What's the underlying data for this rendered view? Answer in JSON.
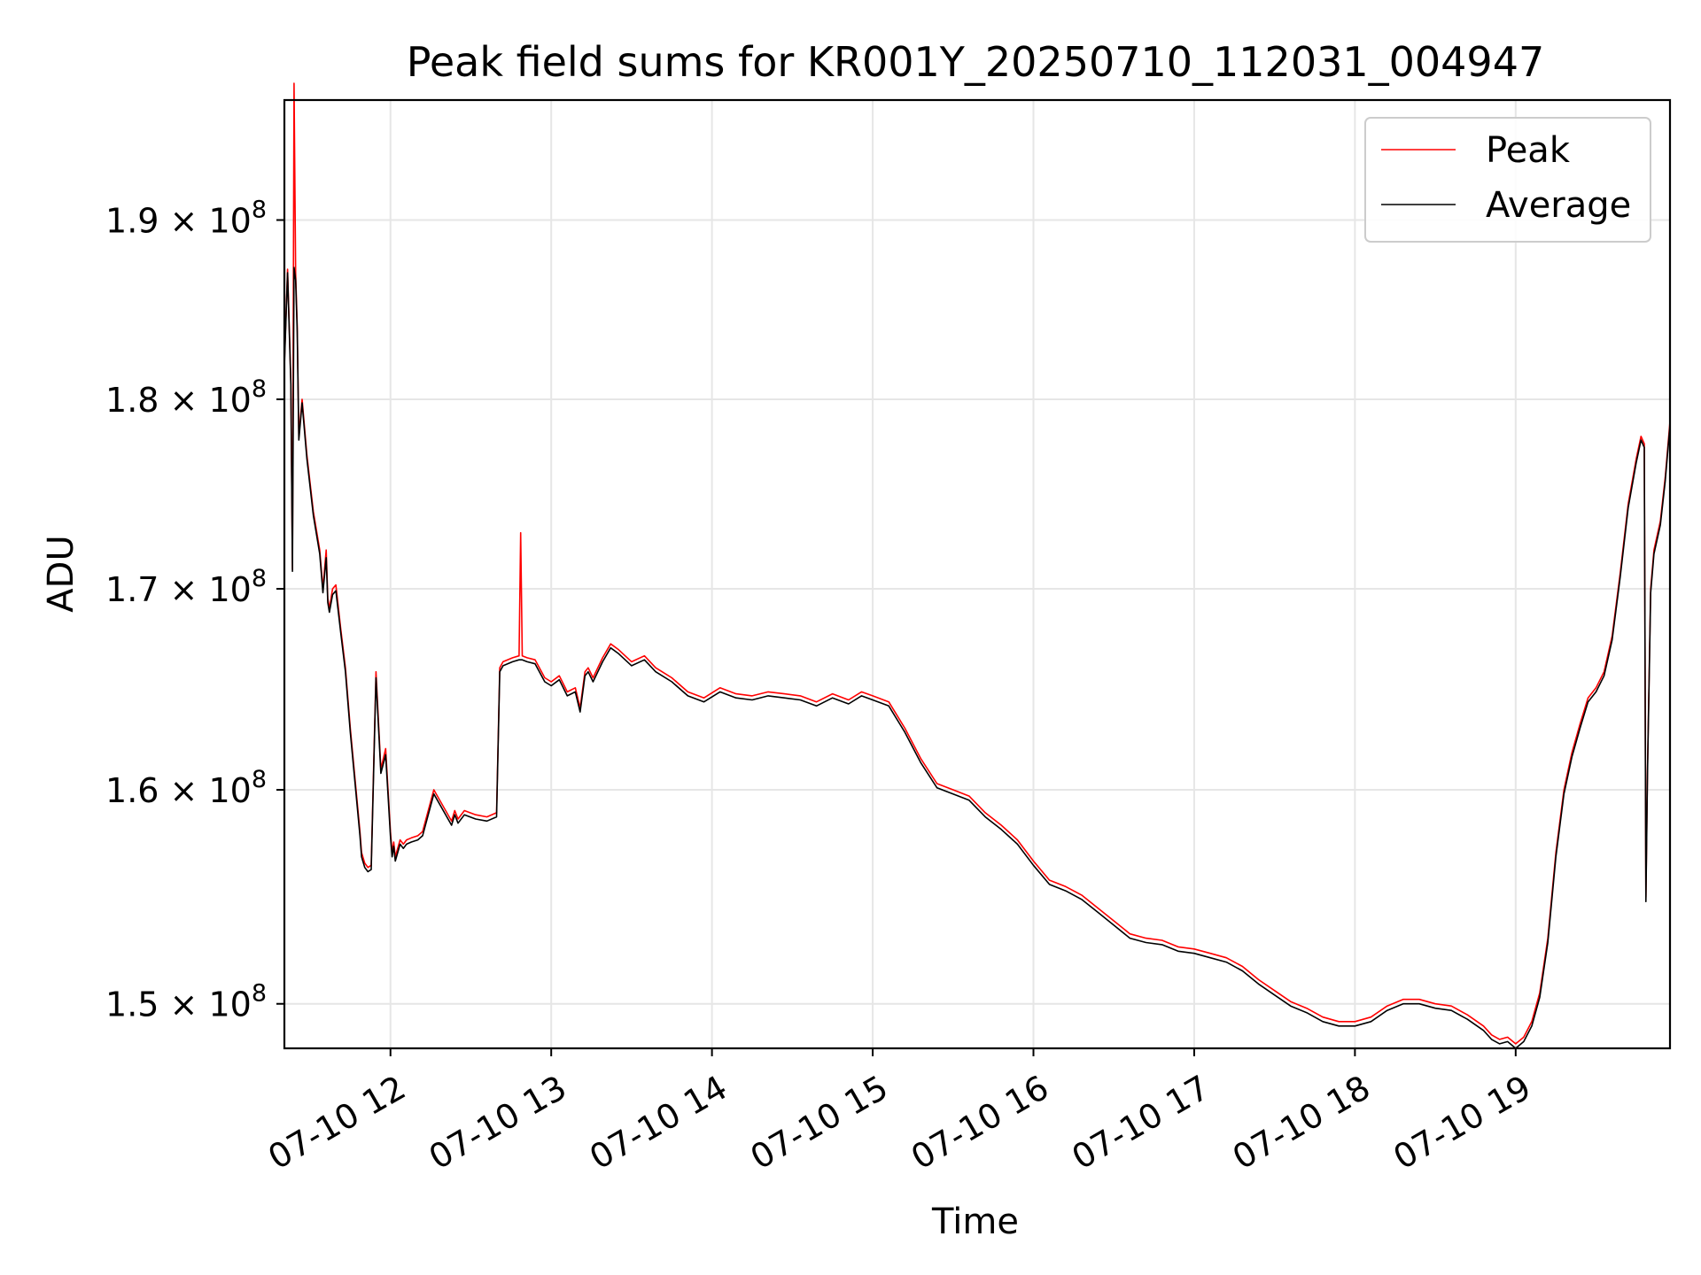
{
  "chart_data": {
    "type": "line",
    "title": "Peak field sums for KR001Y_20250710_112031_004947",
    "xlabel": "Time",
    "ylabel": "ADU",
    "x_unit": "hours (2025-07-10, local)",
    "xlim": [
      11.34,
      19.96
    ],
    "ylim": [
      148000000.0,
      197000000.0
    ],
    "yscale": "log",
    "grid": true,
    "legend_position": "upper right",
    "x_ticks": [
      {
        "value": 12,
        "label": "07-10 12"
      },
      {
        "value": 13,
        "label": "07-10 13"
      },
      {
        "value": 14,
        "label": "07-10 14"
      },
      {
        "value": 15,
        "label": "07-10 15"
      },
      {
        "value": 16,
        "label": "07-10 16"
      },
      {
        "value": 17,
        "label": "07-10 17"
      },
      {
        "value": 18,
        "label": "07-10 18"
      },
      {
        "value": 19,
        "label": "07-10 19"
      }
    ],
    "y_ticks": [
      {
        "value": 150000000.0,
        "mantissa": "1.5",
        "base": "10",
        "exp": "8"
      },
      {
        "value": 160000000.0,
        "mantissa": "1.6",
        "base": "10",
        "exp": "8"
      },
      {
        "value": 170000000.0,
        "mantissa": "1.7",
        "base": "10",
        "exp": "8"
      },
      {
        "value": 180000000.0,
        "mantissa": "1.8",
        "base": "10",
        "exp": "8"
      },
      {
        "value": 190000000.0,
        "mantissa": "1.9",
        "base": "10",
        "exp": "8"
      }
    ],
    "series": [
      {
        "name": "Peak",
        "color": "#ff0000",
        "x": [
          11.34,
          11.36,
          11.38,
          11.39,
          11.4,
          11.41,
          11.42,
          11.43,
          11.45,
          11.48,
          11.52,
          11.56,
          11.58,
          11.6,
          11.61,
          11.62,
          11.64,
          11.66,
          11.69,
          11.72,
          11.75,
          11.78,
          11.81,
          11.82,
          11.84,
          11.86,
          11.88,
          11.91,
          11.94,
          11.97,
          12.0,
          12.01,
          12.02,
          12.03,
          12.06,
          12.08,
          12.1,
          12.13,
          12.17,
          12.2,
          12.27,
          12.38,
          12.4,
          12.42,
          12.46,
          12.53,
          12.6,
          12.66,
          12.68,
          12.7,
          12.76,
          12.8,
          12.81,
          12.82,
          12.85,
          12.9,
          12.96,
          13.0,
          13.05,
          13.1,
          13.15,
          13.18,
          13.21,
          13.23,
          13.26,
          13.32,
          13.37,
          13.42,
          13.5,
          13.58,
          13.65,
          13.75,
          13.85,
          13.95,
          14.05,
          14.15,
          14.25,
          14.35,
          14.45,
          14.55,
          14.65,
          14.75,
          14.85,
          14.93,
          15.0,
          15.1,
          15.2,
          15.3,
          15.4,
          15.5,
          15.6,
          15.7,
          15.8,
          15.9,
          16.0,
          16.1,
          16.2,
          16.3,
          16.4,
          16.5,
          16.6,
          16.7,
          16.8,
          16.9,
          17.0,
          17.1,
          17.2,
          17.3,
          17.4,
          17.5,
          17.6,
          17.7,
          17.8,
          17.9,
          18.0,
          18.1,
          18.2,
          18.3,
          18.4,
          18.5,
          18.6,
          18.7,
          18.8,
          18.85,
          18.9,
          18.95,
          19.0,
          19.05,
          19.1,
          19.15,
          19.2,
          19.25,
          19.3,
          19.35,
          19.4,
          19.45,
          19.5,
          19.55,
          19.6,
          19.65,
          19.7,
          19.75,
          19.78,
          19.8,
          19.81,
          19.82,
          19.84,
          19.86,
          19.9,
          19.93,
          19.96
        ],
        "y": [
          182000000.0,
          187200000.0,
          181000000.0,
          171000000.0,
          198000000.0,
          187000000.0,
          184000000.0,
          178000000.0,
          180000000.0,
          177000000.0,
          174000000.0,
          172000000.0,
          170000000.0,
          172000000.0,
          169500000.0,
          169000000.0,
          170000000.0,
          170200000.0,
          168000000.0,
          166000000.0,
          163000000.0,
          160500000.0,
          158000000.0,
          157000000.0,
          156500000.0,
          156300000.0,
          156400000.0,
          165800000.0,
          161000000.0,
          162000000.0,
          158000000.0,
          157000000.0,
          157500000.0,
          156800000.0,
          157600000.0,
          157400000.0,
          157600000.0,
          157700000.0,
          157800000.0,
          158000000.0,
          160000000.0,
          158500000.0,
          159000000.0,
          158600000.0,
          159000000.0,
          158800000.0,
          158700000.0,
          158900000.0,
          166000000.0,
          166300000.0,
          166500000.0,
          166600000.0,
          172900000.0,
          166600000.0,
          166500000.0,
          166400000.0,
          165500000.0,
          165300000.0,
          165600000.0,
          164800000.0,
          165000000.0,
          164000000.0,
          165800000.0,
          166000000.0,
          165500000.0,
          166500000.0,
          167200000.0,
          166900000.0,
          166300000.0,
          166600000.0,
          166000000.0,
          165500000.0,
          164800000.0,
          164500000.0,
          165000000.0,
          164700000.0,
          164600000.0,
          164800000.0,
          164700000.0,
          164600000.0,
          164300000.0,
          164700000.0,
          164400000.0,
          164800000.0,
          164600000.0,
          164300000.0,
          163000000.0,
          161500000.0,
          160300000.0,
          160000000.0,
          159700000.0,
          158900000.0,
          158300000.0,
          157600000.0,
          156600000.0,
          155700000.0,
          155400000.0,
          155000000.0,
          154400000.0,
          153800000.0,
          153200000.0,
          153000000.0,
          152900000.0,
          152600000.0,
          152500000.0,
          152300000.0,
          152100000.0,
          151700000.0,
          151100000.0,
          150600000.0,
          150100000.0,
          149800000.0,
          149400000.0,
          149200000.0,
          149200000.0,
          149400000.0,
          149900000.0,
          150200000.0,
          150200000.0,
          150000000.0,
          149900000.0,
          149500000.0,
          149000000.0,
          148600000.0,
          148400000.0,
          148500000.0,
          148200000.0,
          148500000.0,
          149200000.0,
          150500000.0,
          153000000.0,
          157000000.0,
          160000000.0,
          161800000.0,
          163200000.0,
          164500000.0,
          165000000.0,
          165800000.0,
          167600000.0,
          170800000.0,
          174400000.0,
          176800000.0,
          178000000.0,
          177600000.0,
          154900000.0,
          161000000.0,
          170000000.0,
          172000000.0,
          173500000.0,
          175800000.0,
          178800000.0
        ]
      },
      {
        "name": "Average",
        "color": "#000000",
        "x": [
          11.34,
          11.36,
          11.38,
          11.39,
          11.4,
          11.41,
          11.42,
          11.43,
          11.45,
          11.48,
          11.52,
          11.56,
          11.58,
          11.6,
          11.61,
          11.62,
          11.64,
          11.66,
          11.69,
          11.72,
          11.75,
          11.78,
          11.81,
          11.82,
          11.84,
          11.86,
          11.88,
          11.91,
          11.94,
          11.97,
          12.0,
          12.01,
          12.02,
          12.03,
          12.06,
          12.08,
          12.1,
          12.13,
          12.17,
          12.2,
          12.27,
          12.38,
          12.4,
          12.42,
          12.46,
          12.53,
          12.6,
          12.66,
          12.68,
          12.7,
          12.76,
          12.8,
          12.81,
          12.82,
          12.85,
          12.9,
          12.96,
          13.0,
          13.05,
          13.1,
          13.15,
          13.18,
          13.21,
          13.23,
          13.26,
          13.32,
          13.37,
          13.42,
          13.5,
          13.58,
          13.65,
          13.75,
          13.85,
          13.95,
          14.05,
          14.15,
          14.25,
          14.35,
          14.45,
          14.55,
          14.65,
          14.75,
          14.85,
          14.93,
          15.0,
          15.1,
          15.2,
          15.3,
          15.4,
          15.5,
          15.6,
          15.7,
          15.8,
          15.9,
          16.0,
          16.1,
          16.2,
          16.3,
          16.4,
          16.5,
          16.6,
          16.7,
          16.8,
          16.9,
          17.0,
          17.1,
          17.2,
          17.3,
          17.4,
          17.5,
          17.6,
          17.7,
          17.8,
          17.9,
          18.0,
          18.1,
          18.2,
          18.3,
          18.4,
          18.5,
          18.6,
          18.7,
          18.8,
          18.85,
          18.9,
          18.95,
          19.0,
          19.05,
          19.1,
          19.15,
          19.2,
          19.25,
          19.3,
          19.35,
          19.4,
          19.45,
          19.5,
          19.55,
          19.6,
          19.65,
          19.7,
          19.75,
          19.78,
          19.8,
          19.81,
          19.82,
          19.84,
          19.86,
          19.9,
          19.93,
          19.96
        ],
        "y": [
          181800000.0,
          187000000.0,
          180800000.0,
          170900000.0,
          187300000.0,
          186600000.0,
          183700000.0,
          177800000.0,
          179800000.0,
          176800000.0,
          173800000.0,
          171800000.0,
          169800000.0,
          171600000.0,
          169300000.0,
          168800000.0,
          169700000.0,
          169900000.0,
          167800000.0,
          165800000.0,
          162800000.0,
          160300000.0,
          157800000.0,
          156800000.0,
          156300000.0,
          156100000.0,
          156200000.0,
          165500000.0,
          160800000.0,
          161700000.0,
          157800000.0,
          156800000.0,
          157300000.0,
          156600000.0,
          157400000.0,
          157200000.0,
          157400000.0,
          157500000.0,
          157600000.0,
          157800000.0,
          159800000.0,
          158300000.0,
          158800000.0,
          158400000.0,
          158800000.0,
          158600000.0,
          158500000.0,
          158700000.0,
          165800000.0,
          166100000.0,
          166300000.0,
          166400000.0,
          166400000.0,
          166400000.0,
          166300000.0,
          166200000.0,
          165300000.0,
          165100000.0,
          165400000.0,
          164600000.0,
          164800000.0,
          163800000.0,
          165600000.0,
          165800000.0,
          165300000.0,
          166300000.0,
          167000000.0,
          166700000.0,
          166100000.0,
          166400000.0,
          165800000.0,
          165300000.0,
          164600000.0,
          164300000.0,
          164800000.0,
          164500000.0,
          164400000.0,
          164600000.0,
          164500000.0,
          164400000.0,
          164100000.0,
          164500000.0,
          164200000.0,
          164600000.0,
          164400000.0,
          164100000.0,
          162800000.0,
          161300000.0,
          160100000.0,
          159800000.0,
          159500000.0,
          158700000.0,
          158100000.0,
          157400000.0,
          156400000.0,
          155500000.0,
          155200000.0,
          154800000.0,
          154200000.0,
          153600000.0,
          153000000.0,
          152800000.0,
          152700000.0,
          152400000.0,
          152300000.0,
          152100000.0,
          151900000.0,
          151500000.0,
          150900000.0,
          150400000.0,
          149900000.0,
          149600000.0,
          149200000.0,
          149000000.0,
          149000000.0,
          149200000.0,
          149700000.0,
          150000000.0,
          150000000.0,
          149800000.0,
          149700000.0,
          149300000.0,
          148800000.0,
          148400000.0,
          148200000.0,
          148300000.0,
          148000000.0,
          148300000.0,
          149000000.0,
          150300000.0,
          152800000.0,
          156800000.0,
          159800000.0,
          161600000.0,
          163000000.0,
          164300000.0,
          164800000.0,
          165600000.0,
          167400000.0,
          170600000.0,
          174200000.0,
          176600000.0,
          177800000.0,
          177400000.0,
          154700000.0,
          160800000.0,
          169800000.0,
          171800000.0,
          173300000.0,
          175600000.0,
          178600000.0
        ]
      }
    ]
  }
}
